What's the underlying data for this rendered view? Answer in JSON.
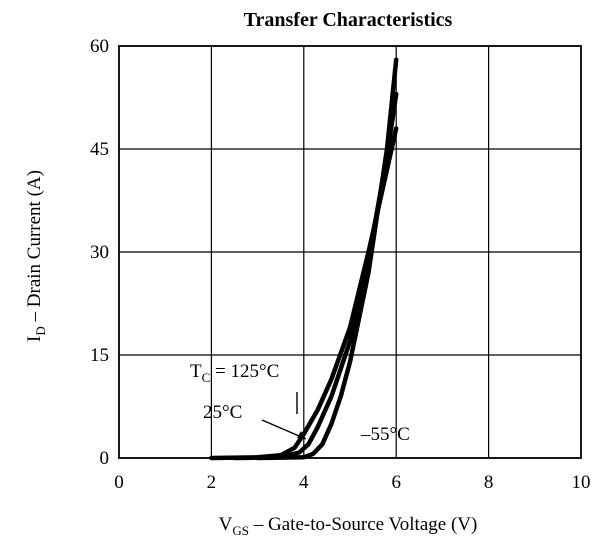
{
  "chart_data": {
    "type": "line",
    "title": "Transfer Characteristics",
    "xlabel": {
      "main": "V",
      "sub": "GS",
      "rest": "  –  Gate-to-Source Voltage (V)"
    },
    "ylabel": {
      "main": "I",
      "sub": "D",
      "rest": "  –  Drain Current (A)"
    },
    "xlim": [
      0,
      10
    ],
    "ylim": [
      0,
      60
    ],
    "xticks": [
      "0",
      "2",
      "4",
      "6",
      "8",
      "10"
    ],
    "yticks": [
      "0",
      "15",
      "30",
      "45",
      "60"
    ],
    "xtick_values": [
      0,
      2,
      4,
      6,
      8,
      10
    ],
    "ytick_values": [
      0,
      15,
      30,
      45,
      60
    ],
    "grid": true,
    "series": [
      {
        "color": "#000000",
        "x": [
          2.0,
          3.0,
          3.5,
          3.8,
          4.0,
          4.3,
          4.6,
          5.0,
          5.4,
          5.8,
          6.0
        ],
        "y": [
          0.0,
          0.1,
          0.4,
          1.5,
          3.5,
          7.0,
          11.5,
          19.0,
          30.0,
          42.0,
          48.0
        ]
      },
      {
        "color": "#000000",
        "x": [
          2.5,
          3.5,
          3.9,
          4.1,
          4.3,
          4.6,
          5.0,
          5.4,
          5.8,
          6.0
        ],
        "y": [
          0.0,
          0.1,
          0.8,
          2.0,
          4.5,
          9.0,
          17.0,
          29.0,
          44.0,
          53.0
        ]
      },
      {
        "color": "#000000",
        "x": [
          3.0,
          4.0,
          4.2,
          4.4,
          4.6,
          4.8,
          5.0,
          5.4,
          5.8,
          6.0
        ],
        "y": [
          0.0,
          0.1,
          0.6,
          2.0,
          5.0,
          9.0,
          14.0,
          27.0,
          45.0,
          58.0
        ]
      }
    ],
    "annotations": [
      {
        "main": "T",
        "sub": "C",
        "rest": " = 125°C"
      },
      {
        "text": "25°C"
      },
      {
        "text": "–55°C"
      }
    ]
  }
}
